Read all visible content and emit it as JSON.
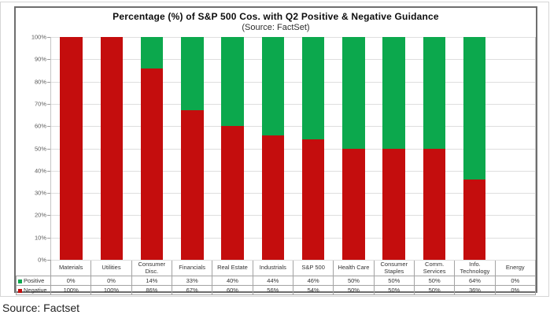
{
  "page": {
    "source_caption": "Source: Factset"
  },
  "chart": {
    "title": "Percentage (%) of S&P 500 Cos. with Q2 Positive & Negative Guidance",
    "subtitle": "(Source: FactSet)"
  },
  "chart_data": {
    "type": "bar",
    "stacked": true,
    "title": "Percentage (%) of S&P 500 Cos. with Q2 Positive & Negative Guidance",
    "subtitle": "(Source: FactSet)",
    "categories": [
      "Materials",
      "Utilities",
      "Consumer Disc.",
      "Financials",
      "Real Estate",
      "Industrials",
      "S&P 500",
      "Health Care",
      "Consumer Staples",
      "Comm. Services",
      "Info. Technology",
      "Energy"
    ],
    "series": [
      {
        "name": "Positive",
        "color": "#0ca84d",
        "values": [
          0,
          0,
          14,
          33,
          40,
          44,
          46,
          50,
          50,
          50,
          64,
          0
        ],
        "display": [
          "0%",
          "0%",
          "14%",
          "33%",
          "40%",
          "44%",
          "46%",
          "50%",
          "50%",
          "50%",
          "64%",
          "0%"
        ]
      },
      {
        "name": "Negative",
        "color": "#c40d0d",
        "values": [
          100,
          100,
          86,
          67,
          60,
          56,
          54,
          50,
          50,
          50,
          36,
          0
        ],
        "display": [
          "100%",
          "100%",
          "86%",
          "67%",
          "60%",
          "56%",
          "54%",
          "50%",
          "50%",
          "50%",
          "36%",
          "0%"
        ]
      }
    ],
    "stack_order_top_to_bottom": [
      "Positive",
      "Negative"
    ],
    "ylim": [
      0,
      100
    ],
    "ytick_step": 10,
    "ytick_labels_top_down": [
      "100%",
      "90%",
      "80%",
      "70%",
      "60%",
      "50%",
      "40%",
      "30%",
      "20%",
      "10%",
      "0%"
    ],
    "grid": true,
    "legend_position": "table-left",
    "colors": {
      "positive": "#0ca84d",
      "negative": "#c40d0d",
      "gridline": "#dedede"
    }
  }
}
